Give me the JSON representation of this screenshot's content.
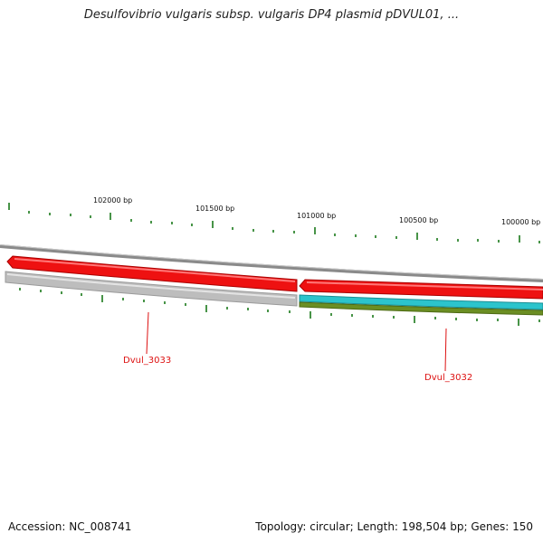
{
  "header": {
    "title": "Desulfovibrio vulgaris subsp. vulgaris DP4 plasmid pDVUL01, ..."
  },
  "footer": {
    "accession": "Accession: NC_008741",
    "summary": "Topology: circular; Length: 198,504 bp; Genes: 150"
  },
  "ruler": {
    "labels": [
      "102000 bp",
      "101500 bp",
      "101000 bp",
      "100500 bp",
      "100000 bp"
    ]
  },
  "genes": [
    {
      "name": "Dvul_3033",
      "color": "#ee1111"
    },
    {
      "name": "Dvul_3032",
      "color": "#ee1111"
    }
  ],
  "colors": {
    "gene_red": "#ee1111",
    "gene_red_dark": "#aa0000",
    "backbone_gray": "#8a8a8a",
    "pseudo_gray": "#bdbdbd",
    "cds_cyan": "#2cc4cc",
    "rna_olive": "#6b8e23",
    "tick_green": "#1a7a1a"
  }
}
